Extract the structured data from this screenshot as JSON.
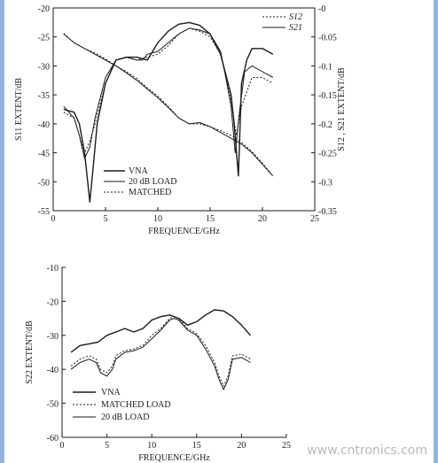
{
  "watermark": "www.cntronics.com",
  "chart_data": [
    {
      "type": "line",
      "xlabel": "FREQUENCE/GHz",
      "ylabel_left": "S11 EXTENT/dB",
      "ylabel_right": "S12 , S21 EXTENT/dB",
      "xlim": [
        0,
        25
      ],
      "ylim_left": [
        -55,
        -20
      ],
      "ylim_right": [
        -0.35,
        0
      ],
      "xticks": [
        "0",
        "5",
        "10",
        "15",
        "20",
        "25"
      ],
      "yticks_left": [
        "-20",
        "-25",
        "-30",
        "-35",
        "-40",
        "-45",
        "-50",
        "-55"
      ],
      "yticks_right": [
        "-0",
        "-0.05",
        "-0.1",
        "-0.15",
        "-0.2",
        "-0.25",
        "-0.3",
        "-0.35"
      ],
      "legend_left": [
        "VNA",
        "20 dB LOAD",
        "MATCHED"
      ],
      "legend_right": [
        "S12",
        "S21"
      ],
      "series": [
        {
          "name": "VNA",
          "axis": "left",
          "style": "solid",
          "x": [
            1,
            2,
            2.5,
            3,
            3.3,
            3.5,
            3.8,
            4.2,
            5,
            6,
            7,
            8,
            9,
            10,
            11,
            12,
            13,
            14,
            15,
            16,
            17,
            17.3,
            17.7,
            18,
            18.5,
            19,
            20,
            21
          ],
          "y": [
            -37.5,
            -38,
            -40,
            -45,
            -50,
            -53.5,
            -48,
            -40,
            -33,
            -29,
            -28.5,
            -28.5,
            -29,
            -26,
            -24,
            -22.8,
            -22.5,
            -23,
            -24.5,
            -28,
            -35,
            -40,
            -49,
            -33,
            -29,
            -27,
            -27,
            -28
          ]
        },
        {
          "name": "20 dB LOAD",
          "axis": "left",
          "style": "solid",
          "x": [
            1,
            2,
            2.5,
            3,
            3.5,
            4,
            5,
            6,
            7,
            8,
            8.5,
            9,
            10,
            11,
            12,
            13,
            14,
            15,
            16,
            16.5,
            17,
            17.4,
            17.8,
            18.3,
            19,
            20,
            21
          ],
          "y": [
            -37,
            -39,
            -42,
            -46,
            -44,
            -39,
            -32,
            -29,
            -28.5,
            -29,
            -29,
            -28,
            -27.5,
            -26,
            -24.5,
            -23.5,
            -23.8,
            -24.5,
            -27.5,
            -32,
            -37,
            -45,
            -38,
            -31,
            -30,
            -31,
            -32
          ]
        },
        {
          "name": "MATCHED",
          "axis": "left",
          "style": "dotted",
          "x": [
            1,
            2,
            2.5,
            3,
            3.5,
            4,
            5,
            6,
            7,
            8,
            9,
            10,
            11,
            12,
            13,
            14,
            15,
            16,
            17,
            17.5,
            18,
            19,
            20,
            21
          ],
          "y": [
            -38,
            -39,
            -42,
            -45,
            -43,
            -40,
            -33,
            -29,
            -28.5,
            -29,
            -28.5,
            -28,
            -26.5,
            -24.5,
            -23.5,
            -24,
            -25,
            -28,
            -36,
            -42,
            -37,
            -32,
            -32,
            -33
          ]
        },
        {
          "name": "S12",
          "axis": "right",
          "style": "dotted",
          "x": [
            1,
            2,
            3,
            4,
            5,
            6,
            7,
            8,
            9,
            10,
            11,
            12,
            13,
            14,
            15,
            16,
            17,
            18,
            19,
            20,
            21
          ],
          "y": [
            -0.044,
            -0.06,
            -0.07,
            -0.078,
            -0.088,
            -0.1,
            -0.11,
            -0.122,
            -0.138,
            -0.152,
            -0.17,
            -0.19,
            -0.2,
            -0.2,
            -0.205,
            -0.212,
            -0.22,
            -0.232,
            -0.248,
            -0.268,
            -0.29
          ]
        },
        {
          "name": "S21",
          "axis": "right",
          "style": "solid",
          "x": [
            1,
            2,
            3,
            4,
            5,
            6,
            7,
            8,
            9,
            10,
            11,
            12,
            13,
            14,
            15,
            16,
            17,
            18,
            19,
            20,
            21
          ],
          "y": [
            -0.045,
            -0.06,
            -0.07,
            -0.08,
            -0.09,
            -0.1,
            -0.112,
            -0.125,
            -0.14,
            -0.155,
            -0.172,
            -0.19,
            -0.2,
            -0.198,
            -0.205,
            -0.215,
            -0.225,
            -0.235,
            -0.25,
            -0.27,
            -0.29
          ]
        }
      ]
    },
    {
      "type": "line",
      "xlabel": "FREQUENCE/GHz",
      "ylabel": "S22 EXTENT/dB",
      "xlim": [
        0,
        25
      ],
      "ylim": [
        -60,
        -10
      ],
      "xticks": [
        "0",
        "5",
        "10",
        "15",
        "20",
        "25"
      ],
      "yticks": [
        "-10",
        "-20",
        "-30",
        "-40",
        "-50",
        "-60"
      ],
      "legend": [
        "VNA",
        "MATCHED LOAD",
        "20 dB LOAD"
      ],
      "series": [
        {
          "name": "VNA",
          "style": "solid",
          "x": [
            1,
            2,
            3,
            4,
            5,
            6,
            7,
            8,
            9,
            10,
            11,
            12,
            13,
            14,
            15,
            16,
            17,
            18,
            19,
            20,
            21
          ],
          "y": [
            -35,
            -33,
            -32.5,
            -32,
            -30,
            -29,
            -28,
            -29,
            -28,
            -25.5,
            -24.5,
            -24,
            -25,
            -27,
            -26,
            -24,
            -22.5,
            -22.8,
            -24.5,
            -27,
            -30
          ]
        },
        {
          "name": "MATCHED LOAD",
          "style": "dotted",
          "x": [
            1,
            1.5,
            2,
            3,
            3.8,
            4.3,
            5,
            5.6,
            6,
            7,
            8,
            8.5,
            9,
            10,
            11,
            12,
            12.5,
            13,
            14,
            15,
            16,
            17,
            17.5,
            18,
            18.5,
            19,
            20,
            21
          ],
          "y": [
            -39,
            -38,
            -37,
            -36,
            -37,
            -40,
            -41,
            -39,
            -36,
            -34.5,
            -34,
            -33.5,
            -33,
            -30,
            -28,
            -25,
            -24.5,
            -25,
            -28,
            -29.5,
            -33,
            -38,
            -42,
            -45,
            -42,
            -36,
            -35.5,
            -37
          ]
        },
        {
          "name": "20 dB LOAD",
          "style": "solid",
          "x": [
            1,
            1.5,
            2,
            3,
            3.8,
            4.3,
            5,
            5.6,
            6,
            7,
            8,
            8.5,
            9,
            10,
            11,
            12,
            12.5,
            13,
            14,
            15,
            16,
            17,
            17.5,
            18,
            18.5,
            19,
            20,
            21
          ],
          "y": [
            -40,
            -39,
            -38,
            -37,
            -38,
            -41,
            -42,
            -40,
            -37,
            -35,
            -34.5,
            -34,
            -33.5,
            -31,
            -28.5,
            -25.5,
            -25,
            -25.5,
            -28.5,
            -30,
            -34,
            -39,
            -43,
            -46,
            -43,
            -37,
            -36.5,
            -38
          ]
        }
      ]
    }
  ]
}
